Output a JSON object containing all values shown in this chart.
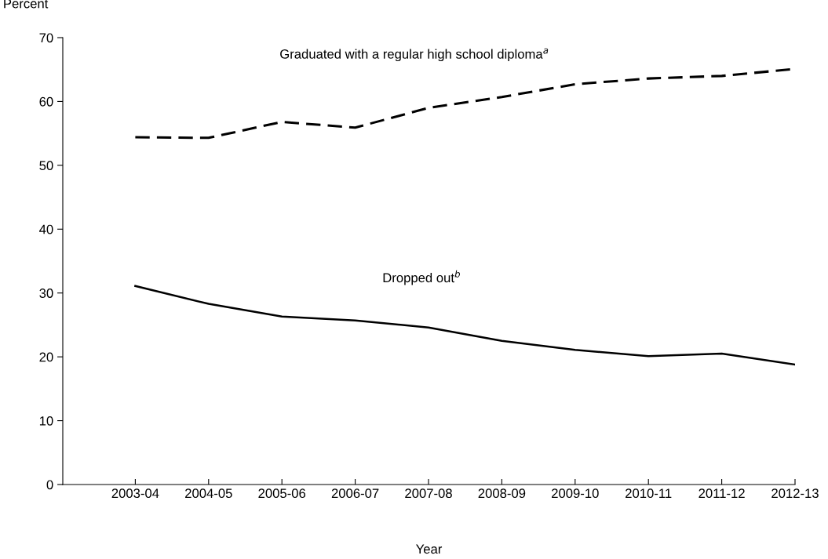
{
  "chart_data": {
    "type": "line",
    "xlabel": "Year",
    "ylabel": "Percent",
    "categories": [
      "2003-04",
      "2004-05",
      "2005-06",
      "2006-07",
      "2007-08",
      "2008-09",
      "2009-10",
      "2010-11",
      "2011-12",
      "2012-13"
    ],
    "series": [
      {
        "color": "#000000",
        "line_style": "dashed",
        "values": [
          54.4,
          54.3,
          56.8,
          55.9,
          59.0,
          60.7,
          62.7,
          63.6,
          64.0,
          65.1
        ]
      },
      {
        "color": "#000000",
        "line_style": "solid",
        "values": [
          31.1,
          28.3,
          26.3,
          25.7,
          24.6,
          22.5,
          21.1,
          20.1,
          20.5,
          18.8
        ]
      }
    ],
    "annotations": [
      "Graduated with a regular high school diploma$^{a}$",
      "Dropped out$^{b}$"
    ],
    "ylim": [
      0,
      70
    ],
    "yticks": [
      0,
      10,
      20,
      30,
      40,
      50,
      60,
      70
    ],
    "grid": false,
    "legend": false,
    "marker": "none"
  }
}
